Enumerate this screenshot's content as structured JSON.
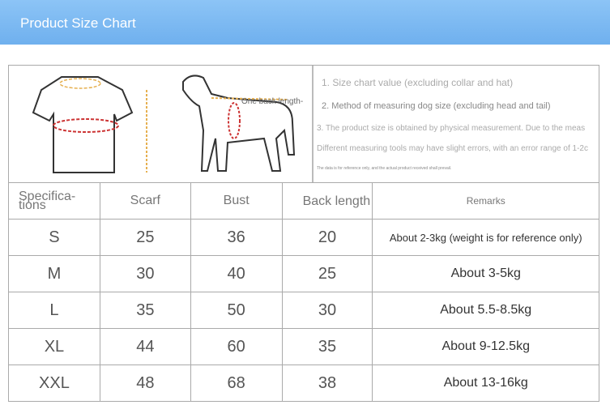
{
  "banner": {
    "title": "Product Size Chart",
    "color": "#7ab8f0"
  },
  "illustration": {
    "dog_label": "One back length-"
  },
  "notes": [
    "1. Size chart value (excluding collar and hat)",
    "2. Method of measuring dog size (excluding head and tail)",
    "3. The product size is obtained by physical measurement. Due to the meas",
    "Different measuring tools may have slight errors, with an error range of 1-2c",
    "The data is for reference only, and the actual product received shall prevail."
  ],
  "table": {
    "headers": [
      "Specifica-tions",
      "Scarf",
      "Bust",
      "Back length",
      "Remarks"
    ],
    "rows": [
      [
        "S",
        "25",
        "36",
        "20",
        "About 2-3kg (weight is for reference only)"
      ],
      [
        "M",
        "30",
        "40",
        "25",
        "About 3-5kg"
      ],
      [
        "L",
        "35",
        "50",
        "30",
        "About 5.5-8.5kg"
      ],
      [
        "XL",
        "44",
        "60",
        "35",
        "About 9-12.5kg"
      ],
      [
        "XXL",
        "48",
        "68",
        "38",
        "About 13-16kg"
      ]
    ]
  }
}
